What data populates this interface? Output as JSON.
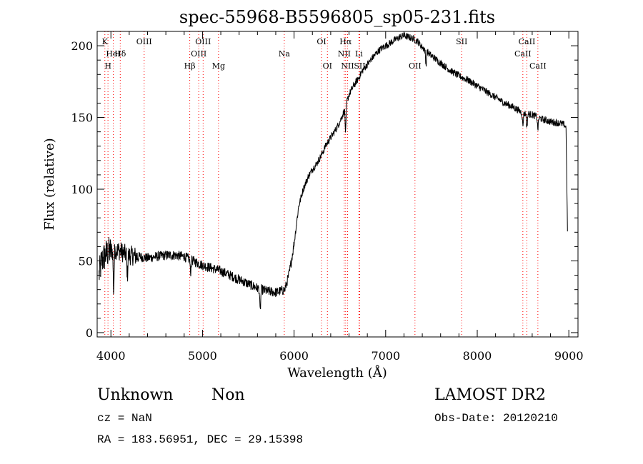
{
  "chart_data": {
    "type": "line",
    "title": "spec-55968-B5596805_sp05-231.fits",
    "xlabel": "Wavelength (Å)",
    "ylabel": "Flux (relative)",
    "xlim": [
      3850,
      9100
    ],
    "ylim": [
      -3,
      210
    ],
    "x_ticks": [
      4000,
      5000,
      6000,
      7000,
      8000,
      9000
    ],
    "y_ticks": [
      0,
      50,
      100,
      150,
      200
    ],
    "grid": false,
    "legend": "none",
    "line_color": "#000000",
    "marker_color": "#ff0000",
    "spectrum": {
      "x": [
        3870,
        3900,
        3950,
        4000,
        4050,
        4100,
        4150,
        4200,
        4300,
        4400,
        4500,
        4600,
        4700,
        4800,
        4900,
        5000,
        5100,
        5200,
        5300,
        5400,
        5500,
        5600,
        5700,
        5800,
        5900,
        5950,
        6000,
        6050,
        6100,
        6150,
        6200,
        6250,
        6300,
        6350,
        6400,
        6450,
        6500,
        6550,
        6600,
        6650,
        6700,
        6750,
        6800,
        6850,
        6900,
        6950,
        7000,
        7050,
        7100,
        7150,
        7200,
        7250,
        7300,
        7350,
        7400,
        7450,
        7500,
        7600,
        7700,
        7800,
        7900,
        8000,
        8100,
        8200,
        8300,
        8400,
        8500,
        8600,
        8700,
        8800,
        8900,
        8950,
        8970,
        8985
      ],
      "y": [
        40,
        50,
        55,
        57,
        58,
        57,
        55,
        54,
        53,
        52,
        53,
        54,
        54,
        53,
        50,
        47,
        45,
        43,
        40,
        37,
        34,
        31,
        29,
        28,
        30,
        42,
        62,
        88,
        100,
        108,
        114,
        118,
        124,
        131,
        136,
        141,
        147,
        155,
        166,
        172,
        177,
        183,
        187,
        191,
        195,
        198,
        200,
        202,
        204,
        206,
        207,
        206,
        205,
        203,
        199,
        196,
        193,
        188,
        183,
        179,
        176,
        172,
        168,
        164,
        160,
        157,
        153,
        152,
        149,
        147,
        146,
        145,
        143,
        70
      ],
      "dips": [
        {
          "x": 4030,
          "depth": 28
        },
        {
          "x": 4180,
          "depth": 14
        },
        {
          "x": 4870,
          "depth": 9
        },
        {
          "x": 5630,
          "depth": 16
        },
        {
          "x": 6563,
          "depth": 18
        },
        {
          "x": 7440,
          "depth": 10
        },
        {
          "x": 8498,
          "depth": 9
        },
        {
          "x": 8542,
          "depth": 10
        },
        {
          "x": 8662,
          "depth": 8
        }
      ]
    },
    "line_markers": [
      {
        "x": 3934,
        "label": "K",
        "row": 0
      },
      {
        "x": 3968,
        "label": "H",
        "row": 2
      },
      {
        "x": 4026,
        "label": "HeI",
        "row": 1
      },
      {
        "x": 4102,
        "label": "Hδ",
        "row": 1
      },
      {
        "x": 4363,
        "label": "OIII",
        "row": 0
      },
      {
        "x": 4861,
        "label": "Hβ",
        "row": 2
      },
      {
        "x": 4959,
        "label": "OIII",
        "row": 1
      },
      {
        "x": 5007,
        "label": "OIII",
        "row": 0
      },
      {
        "x": 5175,
        "label": "Mg",
        "row": 2
      },
      {
        "x": 5893,
        "label": "Na",
        "row": 1
      },
      {
        "x": 6300,
        "label": "OI",
        "row": 0
      },
      {
        "x": 6364,
        "label": "OI",
        "row": 2
      },
      {
        "x": 6548,
        "label": "NII",
        "row": 1
      },
      {
        "x": 6563,
        "label": "Hα",
        "row": 0
      },
      {
        "x": 6584,
        "label": "NII",
        "row": 2
      },
      {
        "x": 6708,
        "label": "Li",
        "row": 1
      },
      {
        "x": 6717,
        "label": "SII",
        "row": 2
      },
      {
        "x": 7320,
        "label": "OII",
        "row": 2
      },
      {
        "x": 7830,
        "label": "SII",
        "row": 0
      },
      {
        "x": 8498,
        "label": "CaII",
        "row": 1
      },
      {
        "x": 8542,
        "label": "CaII",
        "row": 0
      },
      {
        "x": 8662,
        "label": "CaII",
        "row": 2
      }
    ]
  },
  "info": {
    "class_label": "Unknown",
    "subclass_label": "Non",
    "survey": "LAMOST DR2",
    "cz": "cz = NaN",
    "obs_date": "Obs-Date: 20120210",
    "coords": "RA = 183.56951, DEC =  29.15398"
  }
}
